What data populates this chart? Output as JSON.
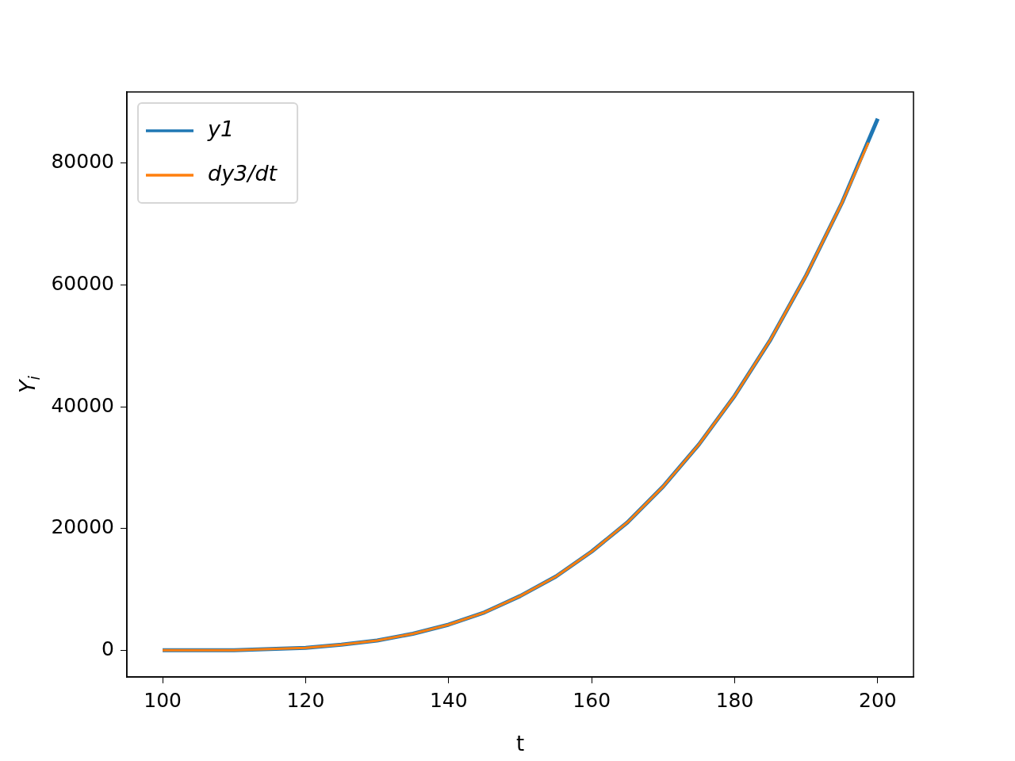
{
  "chart_data": {
    "type": "line",
    "xlabel": "t",
    "ylabel": "Y$_{i}$",
    "xlim": [
      95,
      205
    ],
    "xticks": [
      100,
      120,
      140,
      160,
      180,
      200
    ],
    "ylim": [
      -4400,
      91700
    ],
    "yticks": [
      0,
      20000,
      40000,
      60000,
      80000
    ],
    "grid": false,
    "legend": "top left",
    "marker": "none",
    "line_style": "solid",
    "series": [
      {
        "name": "y1",
        "color": "#1f77b4",
        "x": [
          100,
          105,
          110,
          115,
          120,
          125,
          130,
          135,
          140,
          145,
          150,
          155,
          160,
          165,
          170,
          175,
          180,
          185,
          190,
          195,
          200
        ],
        "values": [
          0,
          0,
          0,
          200,
          400,
          900,
          1600,
          2700,
          4200,
          6200,
          8900,
          12100,
          16200,
          21000,
          26900,
          33800,
          41800,
          51000,
          61600,
          73500,
          87300
        ]
      },
      {
        "name": "dy3/dt",
        "color": "#ff7f0e",
        "x": [
          100,
          105,
          110,
          115,
          120,
          125,
          130,
          135,
          140,
          145,
          150,
          155,
          160,
          165,
          170,
          175,
          180,
          185,
          190,
          195,
          198.7
        ],
        "values": [
          0,
          0,
          0,
          200,
          400,
          900,
          1600,
          2700,
          4200,
          6200,
          8900,
          12100,
          16200,
          21000,
          26900,
          33800,
          41800,
          51000,
          61600,
          73500,
          83400
        ]
      }
    ]
  }
}
